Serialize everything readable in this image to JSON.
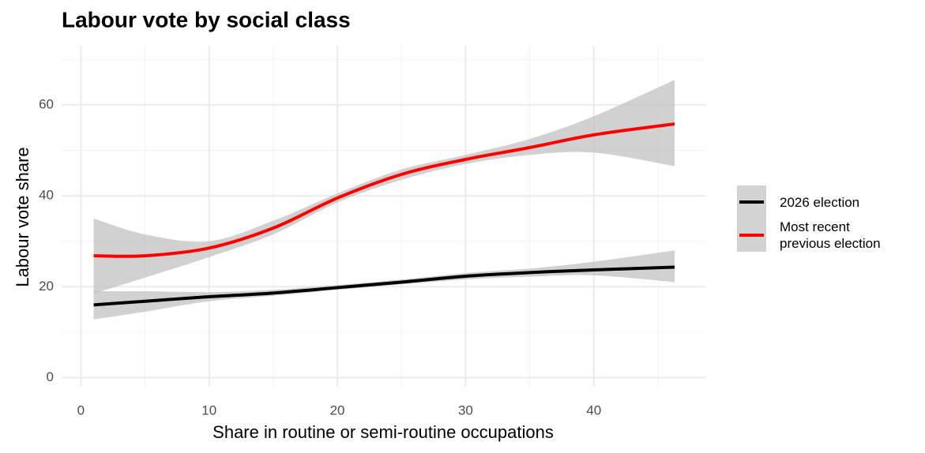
{
  "chart_data": {
    "type": "line",
    "title": "Labour vote by social class",
    "xlabel": "Share in routine or semi-routine occupations",
    "ylabel": "Labour vote share",
    "x": [
      1,
      5,
      10,
      15,
      20,
      25,
      30,
      35,
      40,
      46.3
    ],
    "series": [
      {
        "name": "2026 election",
        "color": "#000000",
        "values": [
          16,
          16.8,
          17.8,
          18.6,
          19.8,
          21,
          22.3,
          23.1,
          23.7,
          24.3
        ],
        "lower": [
          12.8,
          14.5,
          16.8,
          18,
          19.3,
          20.5,
          21.6,
          22.2,
          22.5,
          21
        ],
        "upper": [
          19,
          19,
          18.8,
          19.3,
          20.4,
          21.6,
          23,
          24,
          25.5,
          28
        ]
      },
      {
        "name": "Most recent\nprevious election",
        "color": "#ff0000",
        "values": [
          26.8,
          26.8,
          28.5,
          32.9,
          39.5,
          44.7,
          48,
          50.6,
          53.4,
          55.8
        ],
        "lower": [
          18.5,
          22,
          26.5,
          31.5,
          38.5,
          43.5,
          47,
          49,
          49.5,
          46.5
        ],
        "upper": [
          35,
          31.5,
          30,
          34.5,
          40.5,
          45.8,
          49,
          52.5,
          57.5,
          65.5
        ]
      }
    ],
    "band_color": "#bebebe",
    "xlim": [
      -1.5,
      48.7
    ],
    "xticks": [
      0,
      10,
      20,
      30,
      40
    ],
    "xminor": [
      5,
      15,
      25,
      35,
      45
    ],
    "ylim": [
      -2,
      73
    ],
    "yticks": [
      0,
      20,
      40,
      60
    ],
    "yminor": [
      10,
      30,
      50,
      70
    ],
    "grid": true,
    "legend": "right"
  }
}
